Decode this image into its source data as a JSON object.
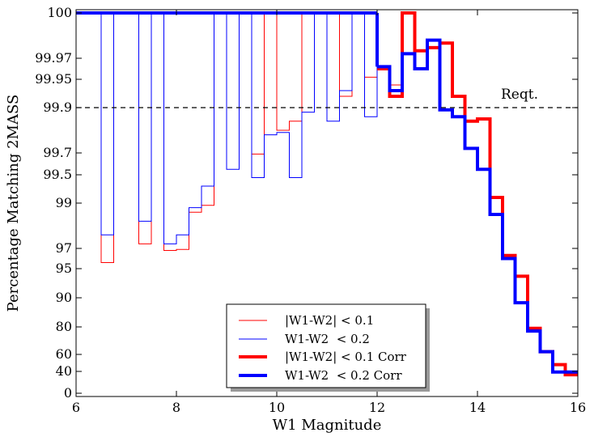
{
  "chart_data": {
    "type": "line",
    "drawstyle": "steps",
    "title": "",
    "xlabel": "W1 Magnitude",
    "ylabel": "Percentage Matching 2MASS",
    "xlim": [
      6,
      16
    ],
    "xticks": [
      6,
      8,
      10,
      12,
      14,
      16
    ],
    "xtick_labels": [
      "6",
      "8",
      "10",
      "12",
      "14",
      "16"
    ],
    "yscale": "nonlinear (compressed toward 100)",
    "yticks": [
      0,
      40,
      60,
      80,
      90,
      95,
      97,
      99,
      99.5,
      99.7,
      99.9,
      99.95,
      99.97,
      100
    ],
    "ytick_labels": [
      "0",
      "40",
      "60",
      "80",
      "90",
      "95",
      "97",
      "99",
      "99.5",
      "99.7",
      "99.9",
      "99.95",
      "99.97",
      "100"
    ],
    "grid": false,
    "legend_position": "lower-center",
    "bin_edges": [
      6.5,
      6.75,
      7.0,
      7.25,
      7.5,
      7.75,
      8.0,
      8.25,
      8.5,
      8.75,
      9.0,
      9.25,
      9.5,
      9.75,
      10.0,
      10.25,
      10.5,
      10.75,
      11.0,
      11.25,
      11.5,
      11.75,
      12.0,
      12.25,
      12.5,
      12.75,
      13.0,
      13.25,
      13.5,
      13.75,
      14.0,
      14.25,
      14.5,
      14.75,
      15.0,
      15.25,
      15.5,
      15.75,
      16.0
    ],
    "series": [
      {
        "name": "|W1-W2| < 0.1",
        "color": "#ff0000",
        "linewidth": "thin",
        "values": [
          95.6,
          100,
          100,
          97.2,
          100,
          96.8,
          96.9,
          98.6,
          98.9,
          100,
          100,
          100,
          99.69,
          100,
          99.8,
          99.84,
          100,
          100,
          100,
          99.92,
          100,
          99.952,
          99.96,
          99.94,
          100,
          99.975,
          99.977,
          99.98,
          99.92,
          99.84,
          99.85,
          99.1,
          96.3,
          93.7,
          79,
          62,
          48,
          34
        ]
      },
      {
        "name": "W1-W2  < 0.2",
        "color": "#0000ff",
        "linewidth": "thin",
        "values": [
          97.6,
          100,
          100,
          98.2,
          100,
          97.2,
          97.6,
          98.8,
          99.3,
          100,
          99.55,
          100,
          99.45,
          99.78,
          99.79,
          99.45,
          99.88,
          100,
          99.84,
          99.93,
          100,
          99.86,
          99.962,
          99.93,
          99.973,
          99.96,
          99.982,
          99.89,
          99.86,
          99.72,
          99.55,
          98.5,
          96.0,
          88.3,
          77,
          62,
          39,
          39
        ]
      },
      {
        "name": "|W1-W2| < 0.1 Corr",
        "color": "#ff0000",
        "linewidth": "thick",
        "values": [
          null,
          null,
          null,
          null,
          null,
          null,
          null,
          null,
          null,
          null,
          null,
          null,
          null,
          null,
          null,
          null,
          null,
          null,
          null,
          null,
          null,
          null,
          99.96,
          99.92,
          100,
          99.975,
          99.977,
          99.98,
          99.92,
          99.84,
          99.85,
          99.1,
          96.3,
          93.7,
          79,
          62,
          48,
          34
        ]
      },
      {
        "name": "W1-W2  < 0.2 Corr",
        "color": "#0000ff",
        "linewidth": "thick",
        "values": [
          null,
          null,
          null,
          null,
          null,
          null,
          null,
          null,
          null,
          null,
          null,
          null,
          null,
          null,
          null,
          null,
          null,
          null,
          null,
          null,
          null,
          null,
          99.962,
          99.93,
          99.973,
          99.96,
          99.982,
          99.89,
          99.86,
          99.72,
          99.55,
          98.5,
          96.0,
          88.3,
          77,
          62,
          39,
          39
        ]
      }
    ],
    "full_lines": {
      "red_at_100_until": 12.0,
      "blue_at_100_until": 12.0
    },
    "reference_line": {
      "y": 99.9,
      "style": "dashed",
      "color": "#000000"
    },
    "annotations": [
      {
        "text": "Reqt.",
        "x": 14.5,
        "y": 99.9
      }
    ]
  }
}
